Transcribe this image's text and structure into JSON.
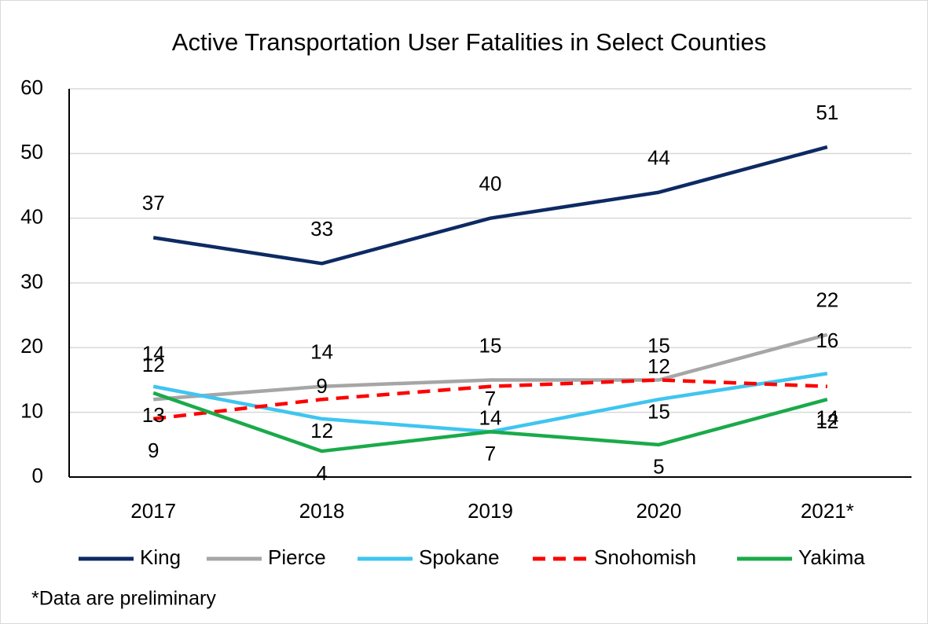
{
  "chart_data": {
    "type": "line",
    "title": "Active Transportation User Fatalities in Select Counties",
    "categories": [
      "2017",
      "2018",
      "2019",
      "2020",
      "2021*"
    ],
    "series": [
      {
        "name": "King",
        "color": "#0d2a63",
        "values": [
          37,
          33,
          40,
          44,
          51
        ]
      },
      {
        "name": "Pierce",
        "color": "#a6a6a6",
        "values": [
          12,
          14,
          15,
          15,
          22
        ]
      },
      {
        "name": "Spokane",
        "color": "#3fc5f0",
        "values": [
          14,
          9,
          7,
          12,
          16
        ]
      },
      {
        "name": "Snohomish",
        "color": "#ff0000",
        "dashed": true,
        "values": [
          9,
          12,
          14,
          15,
          14
        ]
      },
      {
        "name": "Yakima",
        "color": "#1aaa4a",
        "values": [
          13,
          4,
          7,
          5,
          12
        ]
      }
    ],
    "ylim": [
      0,
      60
    ],
    "yticks": [
      0,
      10,
      20,
      30,
      40,
      50,
      60
    ],
    "grid": true,
    "legend": "bottom",
    "note": "*Data are preliminary"
  }
}
